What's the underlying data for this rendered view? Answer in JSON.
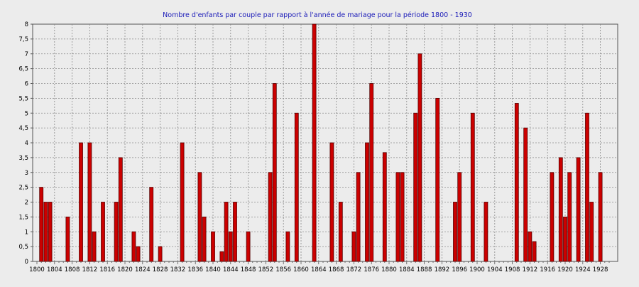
{
  "chart_data": {
    "type": "bar",
    "title": "Nombre d'enfants par couple par rapport à l'année de mariage pour la période 1800 - 1930",
    "xlabel": "",
    "ylabel": "",
    "xlim": [
      1800,
      1930
    ],
    "ylim": [
      0,
      8
    ],
    "y_ticks": [
      0,
      0.5,
      1,
      1.5,
      2,
      2.5,
      3,
      3.5,
      4,
      4.5,
      5,
      5.5,
      6,
      6.5,
      7,
      7.5,
      8
    ],
    "y_tick_labels": [
      "0",
      "0,5",
      "1",
      "1,5",
      "2",
      "2,5",
      "3",
      "3,5",
      "4",
      "4,5",
      "5",
      "5,5",
      "6",
      "6,5",
      "7",
      "7,5",
      "8"
    ],
    "x_ticks": [
      1800,
      1804,
      1808,
      1812,
      1816,
      1820,
      1824,
      1828,
      1832,
      1836,
      1840,
      1844,
      1848,
      1852,
      1856,
      1860,
      1864,
      1868,
      1872,
      1876,
      1880,
      1884,
      1888,
      1892,
      1896,
      1900,
      1904,
      1908,
      1912,
      1916,
      1920,
      1924,
      1928
    ],
    "grid": true,
    "bar_color": "#cc0000",
    "bar_edge_color": "#550000",
    "title_color": "#1a1ab8",
    "background_color": "#ececec",
    "points": [
      {
        "x": 1801,
        "y": 2.5
      },
      {
        "x": 1802,
        "y": 2
      },
      {
        "x": 1803,
        "y": 2
      },
      {
        "x": 1807,
        "y": 1.5
      },
      {
        "x": 1810,
        "y": 4
      },
      {
        "x": 1812,
        "y": 4
      },
      {
        "x": 1813,
        "y": 1
      },
      {
        "x": 1815,
        "y": 2
      },
      {
        "x": 1818,
        "y": 2
      },
      {
        "x": 1819,
        "y": 3.5
      },
      {
        "x": 1822,
        "y": 1
      },
      {
        "x": 1823,
        "y": 0.5
      },
      {
        "x": 1826,
        "y": 2.5
      },
      {
        "x": 1828,
        "y": 0.5
      },
      {
        "x": 1833,
        "y": 4
      },
      {
        "x": 1837,
        "y": 3
      },
      {
        "x": 1838,
        "y": 1.5
      },
      {
        "x": 1840,
        "y": 1
      },
      {
        "x": 1842,
        "y": 0.33
      },
      {
        "x": 1843,
        "y": 2
      },
      {
        "x": 1844,
        "y": 1
      },
      {
        "x": 1845,
        "y": 2
      },
      {
        "x": 1848,
        "y": 1
      },
      {
        "x": 1853,
        "y": 3
      },
      {
        "x": 1854,
        "y": 6
      },
      {
        "x": 1857,
        "y": 1
      },
      {
        "x": 1859,
        "y": 5
      },
      {
        "x": 1863,
        "y": 8
      },
      {
        "x": 1867,
        "y": 4
      },
      {
        "x": 1869,
        "y": 2
      },
      {
        "x": 1872,
        "y": 1
      },
      {
        "x": 1873,
        "y": 3
      },
      {
        "x": 1875,
        "y": 4
      },
      {
        "x": 1876,
        "y": 6
      },
      {
        "x": 1879,
        "y": 3.67
      },
      {
        "x": 1882,
        "y": 3
      },
      {
        "x": 1883,
        "y": 3
      },
      {
        "x": 1886,
        "y": 5
      },
      {
        "x": 1887,
        "y": 7
      },
      {
        "x": 1891,
        "y": 5.5
      },
      {
        "x": 1895,
        "y": 2
      },
      {
        "x": 1896,
        "y": 3
      },
      {
        "x": 1899,
        "y": 5
      },
      {
        "x": 1902,
        "y": 2
      },
      {
        "x": 1909,
        "y": 5.33
      },
      {
        "x": 1911,
        "y": 4.5
      },
      {
        "x": 1912,
        "y": 1
      },
      {
        "x": 1913,
        "y": 0.67
      },
      {
        "x": 1917,
        "y": 3
      },
      {
        "x": 1919,
        "y": 3.5
      },
      {
        "x": 1920,
        "y": 1.5
      },
      {
        "x": 1921,
        "y": 3
      },
      {
        "x": 1923,
        "y": 3.5
      },
      {
        "x": 1925,
        "y": 5
      },
      {
        "x": 1926,
        "y": 2
      },
      {
        "x": 1928,
        "y": 3
      }
    ]
  }
}
